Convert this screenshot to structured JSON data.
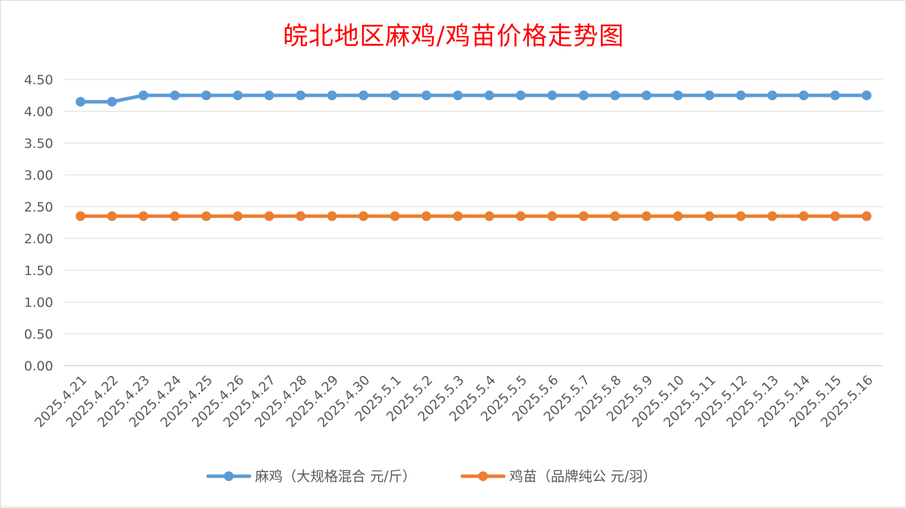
{
  "chart_data": {
    "type": "line",
    "title": "皖北地区麻鸡/鸡苗价格走势图",
    "categories": [
      "2025.4.21",
      "2025.4.22",
      "2025.4.23",
      "2025.4.24",
      "2025.4.25",
      "2025.4.26",
      "2025.4.27",
      "2025.4.28",
      "2025.4.29",
      "2025.4.30",
      "2025.5.1",
      "2025.5.2",
      "2025.5.3",
      "2025.5.4",
      "2025.5.5",
      "2025.5.6",
      "2025.5.7",
      "2025.5.8",
      "2025.5.9",
      "2025.5.10",
      "2025.5.11",
      "2025.5.12",
      "2025.5.13",
      "2025.5.14",
      "2025.5.15",
      "2025.5.16"
    ],
    "y_ticks": [
      "0.00",
      "0.50",
      "1.00",
      "1.50",
      "2.00",
      "2.50",
      "3.00",
      "3.50",
      "4.00",
      "4.50"
    ],
    "ylim": [
      0,
      4.5
    ],
    "grid": true,
    "legend_position": "bottom",
    "series": [
      {
        "name": "麻鸡（大规格混合 元/斤）",
        "color": "#5b9bd5",
        "values": [
          4.15,
          4.15,
          4.25,
          4.25,
          4.25,
          4.25,
          4.25,
          4.25,
          4.25,
          4.25,
          4.25,
          4.25,
          4.25,
          4.25,
          4.25,
          4.25,
          4.25,
          4.25,
          4.25,
          4.25,
          4.25,
          4.25,
          4.25,
          4.25,
          4.25,
          4.25
        ]
      },
      {
        "name": "鸡苗（品牌纯公 元/羽）",
        "color": "#ed7d31",
        "values": [
          2.35,
          2.35,
          2.35,
          2.35,
          2.35,
          2.35,
          2.35,
          2.35,
          2.35,
          2.35,
          2.35,
          2.35,
          2.35,
          2.35,
          2.35,
          2.35,
          2.35,
          2.35,
          2.35,
          2.35,
          2.35,
          2.35,
          2.35,
          2.35,
          2.35,
          2.35
        ]
      }
    ]
  }
}
